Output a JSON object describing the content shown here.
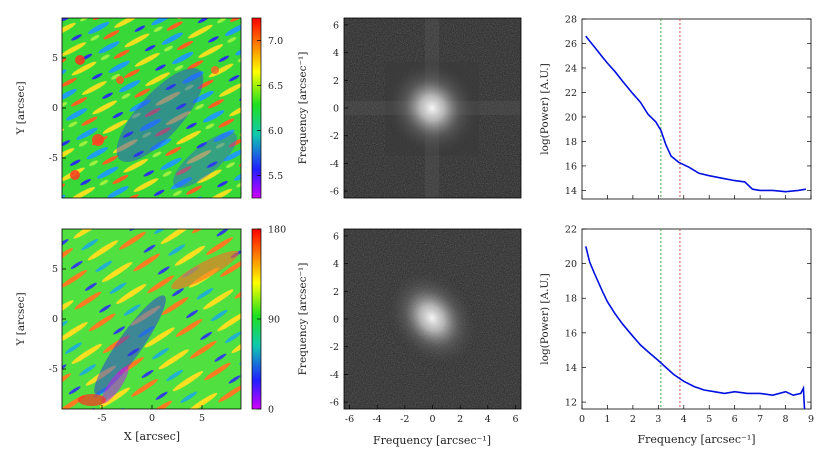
{
  "figure": {
    "map_panels": [
      {
        "id": "intensity",
        "ylabel": "Y [arcsec]",
        "xlabel": "",
        "xticks": [],
        "yticks": [
          "5",
          "0",
          "-5"
        ],
        "colorbar_ticks": [
          "7.0",
          "6.5",
          "6.0",
          "5.5"
        ],
        "colorbar_values": [
          7.0,
          6.5,
          6.0,
          5.5
        ],
        "colorbar_range": [
          5.25,
          7.25
        ]
      },
      {
        "id": "angle",
        "ylabel": "Y [arcsec]",
        "xlabel": "X [arcsec]",
        "xticks": [
          "-5",
          "0",
          "5"
        ],
        "yticks": [
          "5",
          "0",
          "-5"
        ],
        "colorbar_ticks": [
          "180",
          "90",
          "0"
        ],
        "colorbar_values": [
          180,
          90,
          0
        ],
        "colorbar_range": [
          0,
          180
        ]
      }
    ],
    "fft_panels": [
      {
        "id": "fft-top",
        "ylabel": "Frequency [arcsec⁻¹]",
        "xlabel": "",
        "xticks": [],
        "yticks": [
          "6",
          "4",
          "2",
          "0",
          "-2",
          "-4",
          "-6"
        ]
      },
      {
        "id": "fft-bottom",
        "ylabel": "Frequency [arcsec⁻¹]",
        "xlabel": "Frequency [arcsec⁻¹]",
        "xticks": [
          "-6",
          "-4",
          "-2",
          "0",
          "2",
          "4",
          "6"
        ],
        "yticks": [
          "6",
          "4",
          "2",
          "0",
          "-2",
          "-4",
          "-6"
        ]
      }
    ],
    "colors": {
      "line": "#0010e0",
      "green_dash": "#2a9a2a",
      "red_dash": "#d04040"
    }
  },
  "chart_data": [
    {
      "type": "line",
      "id": "power-top",
      "title": "",
      "xlabel": "",
      "ylabel": "log(Power) [A.U.]",
      "xlim": [
        0,
        9
      ],
      "ylim": [
        13.3,
        28
      ],
      "yticks": [
        14,
        16,
        18,
        20,
        22,
        24,
        26,
        28
      ],
      "xticks": [],
      "vlines": [
        {
          "x": 3.1,
          "color": "green"
        },
        {
          "x": 3.85,
          "color": "red"
        }
      ],
      "series": [
        {
          "name": "power",
          "x": [
            0.15,
            0.3,
            0.5,
            0.8,
            1.0,
            1.3,
            1.6,
            2.0,
            2.3,
            2.6,
            2.9,
            3.1,
            3.3,
            3.5,
            3.8,
            4.2,
            4.6,
            5.0,
            5.5,
            6.0,
            6.4,
            6.7,
            7.0,
            7.5,
            8.0,
            8.5,
            8.8
          ],
          "y": [
            26.6,
            26.2,
            25.7,
            24.9,
            24.4,
            23.7,
            22.9,
            21.9,
            21.2,
            20.2,
            19.6,
            18.9,
            17.7,
            16.8,
            16.3,
            15.9,
            15.4,
            15.2,
            15.0,
            14.8,
            14.7,
            14.1,
            14.0,
            14.0,
            13.9,
            14.0,
            14.1
          ]
        }
      ]
    },
    {
      "type": "line",
      "id": "power-bottom",
      "title": "",
      "xlabel": "Frequency [arcsec⁻¹]",
      "ylabel": "log(Power) [A.U.]",
      "xlim": [
        0,
        9
      ],
      "ylim": [
        11.6,
        22
      ],
      "yticks": [
        12,
        14,
        16,
        18,
        20,
        22
      ],
      "xticks": [
        0,
        1,
        2,
        3,
        4,
        5,
        6,
        7,
        8,
        9
      ],
      "vlines": [
        {
          "x": 3.1,
          "color": "green"
        },
        {
          "x": 3.85,
          "color": "red"
        }
      ],
      "series": [
        {
          "name": "power",
          "x": [
            0.15,
            0.3,
            0.5,
            0.8,
            1.0,
            1.3,
            1.6,
            2.0,
            2.3,
            2.6,
            3.0,
            3.3,
            3.6,
            4.0,
            4.4,
            4.8,
            5.2,
            5.6,
            6.0,
            6.5,
            7.0,
            7.5,
            8.0,
            8.3,
            8.6,
            8.7,
            8.75
          ],
          "y": [
            21.0,
            20.1,
            19.4,
            18.4,
            17.8,
            17.1,
            16.5,
            15.8,
            15.3,
            14.9,
            14.4,
            14.0,
            13.6,
            13.2,
            12.9,
            12.7,
            12.6,
            12.5,
            12.6,
            12.5,
            12.5,
            12.4,
            12.6,
            12.4,
            12.5,
            12.8,
            11.5
          ]
        }
      ]
    }
  ]
}
